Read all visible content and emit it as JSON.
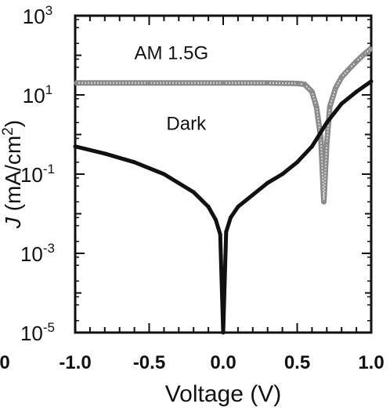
{
  "chart_data": {
    "type": "line",
    "xlabel": "Voltage (V)",
    "ylabel_main": "J",
    "ylabel_units": "(mA/cm",
    "ylabel_sup": "2",
    "ylabel_close": ")",
    "x_range": [
      -1.0,
      1.0
    ],
    "y_range_log10": [
      -5,
      3
    ],
    "y_scale": "log",
    "x_ticks": [
      {
        "value": -1.0,
        "label": "-1.0"
      },
      {
        "value": -0.5,
        "label": "-0.5"
      },
      {
        "value": 0.0,
        "label": "0.0"
      },
      {
        "value": 0.5,
        "label": "0.5"
      },
      {
        "value": 1.0,
        "label": "1.0"
      }
    ],
    "y_ticks": [
      {
        "exp": -5,
        "base": "10",
        "sup": "-5"
      },
      {
        "exp": -3,
        "base": "10",
        "sup": "-3"
      },
      {
        "exp": -1,
        "base": "10",
        "sup": "-1"
      },
      {
        "exp": 1,
        "base": "10",
        "sup": "1"
      },
      {
        "exp": 3,
        "base": "10",
        "sup": "3"
      }
    ],
    "stray_left_label": "0",
    "series": [
      {
        "name": "AM 1.5G",
        "color": "#8a8a8a",
        "points": [
          {
            "x": -1.0,
            "y": 20
          },
          {
            "x": -0.5,
            "y": 20
          },
          {
            "x": 0.0,
            "y": 20
          },
          {
            "x": 0.3,
            "y": 20
          },
          {
            "x": 0.5,
            "y": 19.5
          },
          {
            "x": 0.55,
            "y": 18.5
          },
          {
            "x": 0.6,
            "y": 12
          },
          {
            "x": 0.63,
            "y": 5
          },
          {
            "x": 0.66,
            "y": 0.8
          },
          {
            "x": 0.68,
            "y": 0.02
          },
          {
            "x": 0.7,
            "y": 0.6
          },
          {
            "x": 0.72,
            "y": 5
          },
          {
            "x": 0.76,
            "y": 15
          },
          {
            "x": 0.8,
            "y": 28
          },
          {
            "x": 0.85,
            "y": 45
          },
          {
            "x": 0.9,
            "y": 70
          },
          {
            "x": 0.95,
            "y": 105
          },
          {
            "x": 1.0,
            "y": 150
          }
        ]
      },
      {
        "name": "Dark",
        "color": "#111111",
        "points": [
          {
            "x": -1.0,
            "y": 0.5
          },
          {
            "x": -0.8,
            "y": 0.33
          },
          {
            "x": -0.6,
            "y": 0.2
          },
          {
            "x": -0.4,
            "y": 0.1
          },
          {
            "x": -0.2,
            "y": 0.035
          },
          {
            "x": -0.1,
            "y": 0.015
          },
          {
            "x": -0.05,
            "y": 0.007
          },
          {
            "x": -0.02,
            "y": 0.003
          },
          {
            "x": 0.0,
            "y": 1e-05
          },
          {
            "x": 0.02,
            "y": 0.0035
          },
          {
            "x": 0.05,
            "y": 0.008
          },
          {
            "x": 0.1,
            "y": 0.015
          },
          {
            "x": 0.2,
            "y": 0.03
          },
          {
            "x": 0.3,
            "y": 0.06
          },
          {
            "x": 0.4,
            "y": 0.1
          },
          {
            "x": 0.5,
            "y": 0.2
          },
          {
            "x": 0.6,
            "y": 0.5
          },
          {
            "x": 0.7,
            "y": 2
          },
          {
            "x": 0.8,
            "y": 6
          },
          {
            "x": 0.9,
            "y": 12
          },
          {
            "x": 1.0,
            "y": 22
          }
        ]
      }
    ],
    "annotations": [
      {
        "text": "AM 1.5G",
        "x": -0.35,
        "y": 80
      },
      {
        "text": "Dark",
        "x": -0.25,
        "y": 1.3
      }
    ]
  }
}
